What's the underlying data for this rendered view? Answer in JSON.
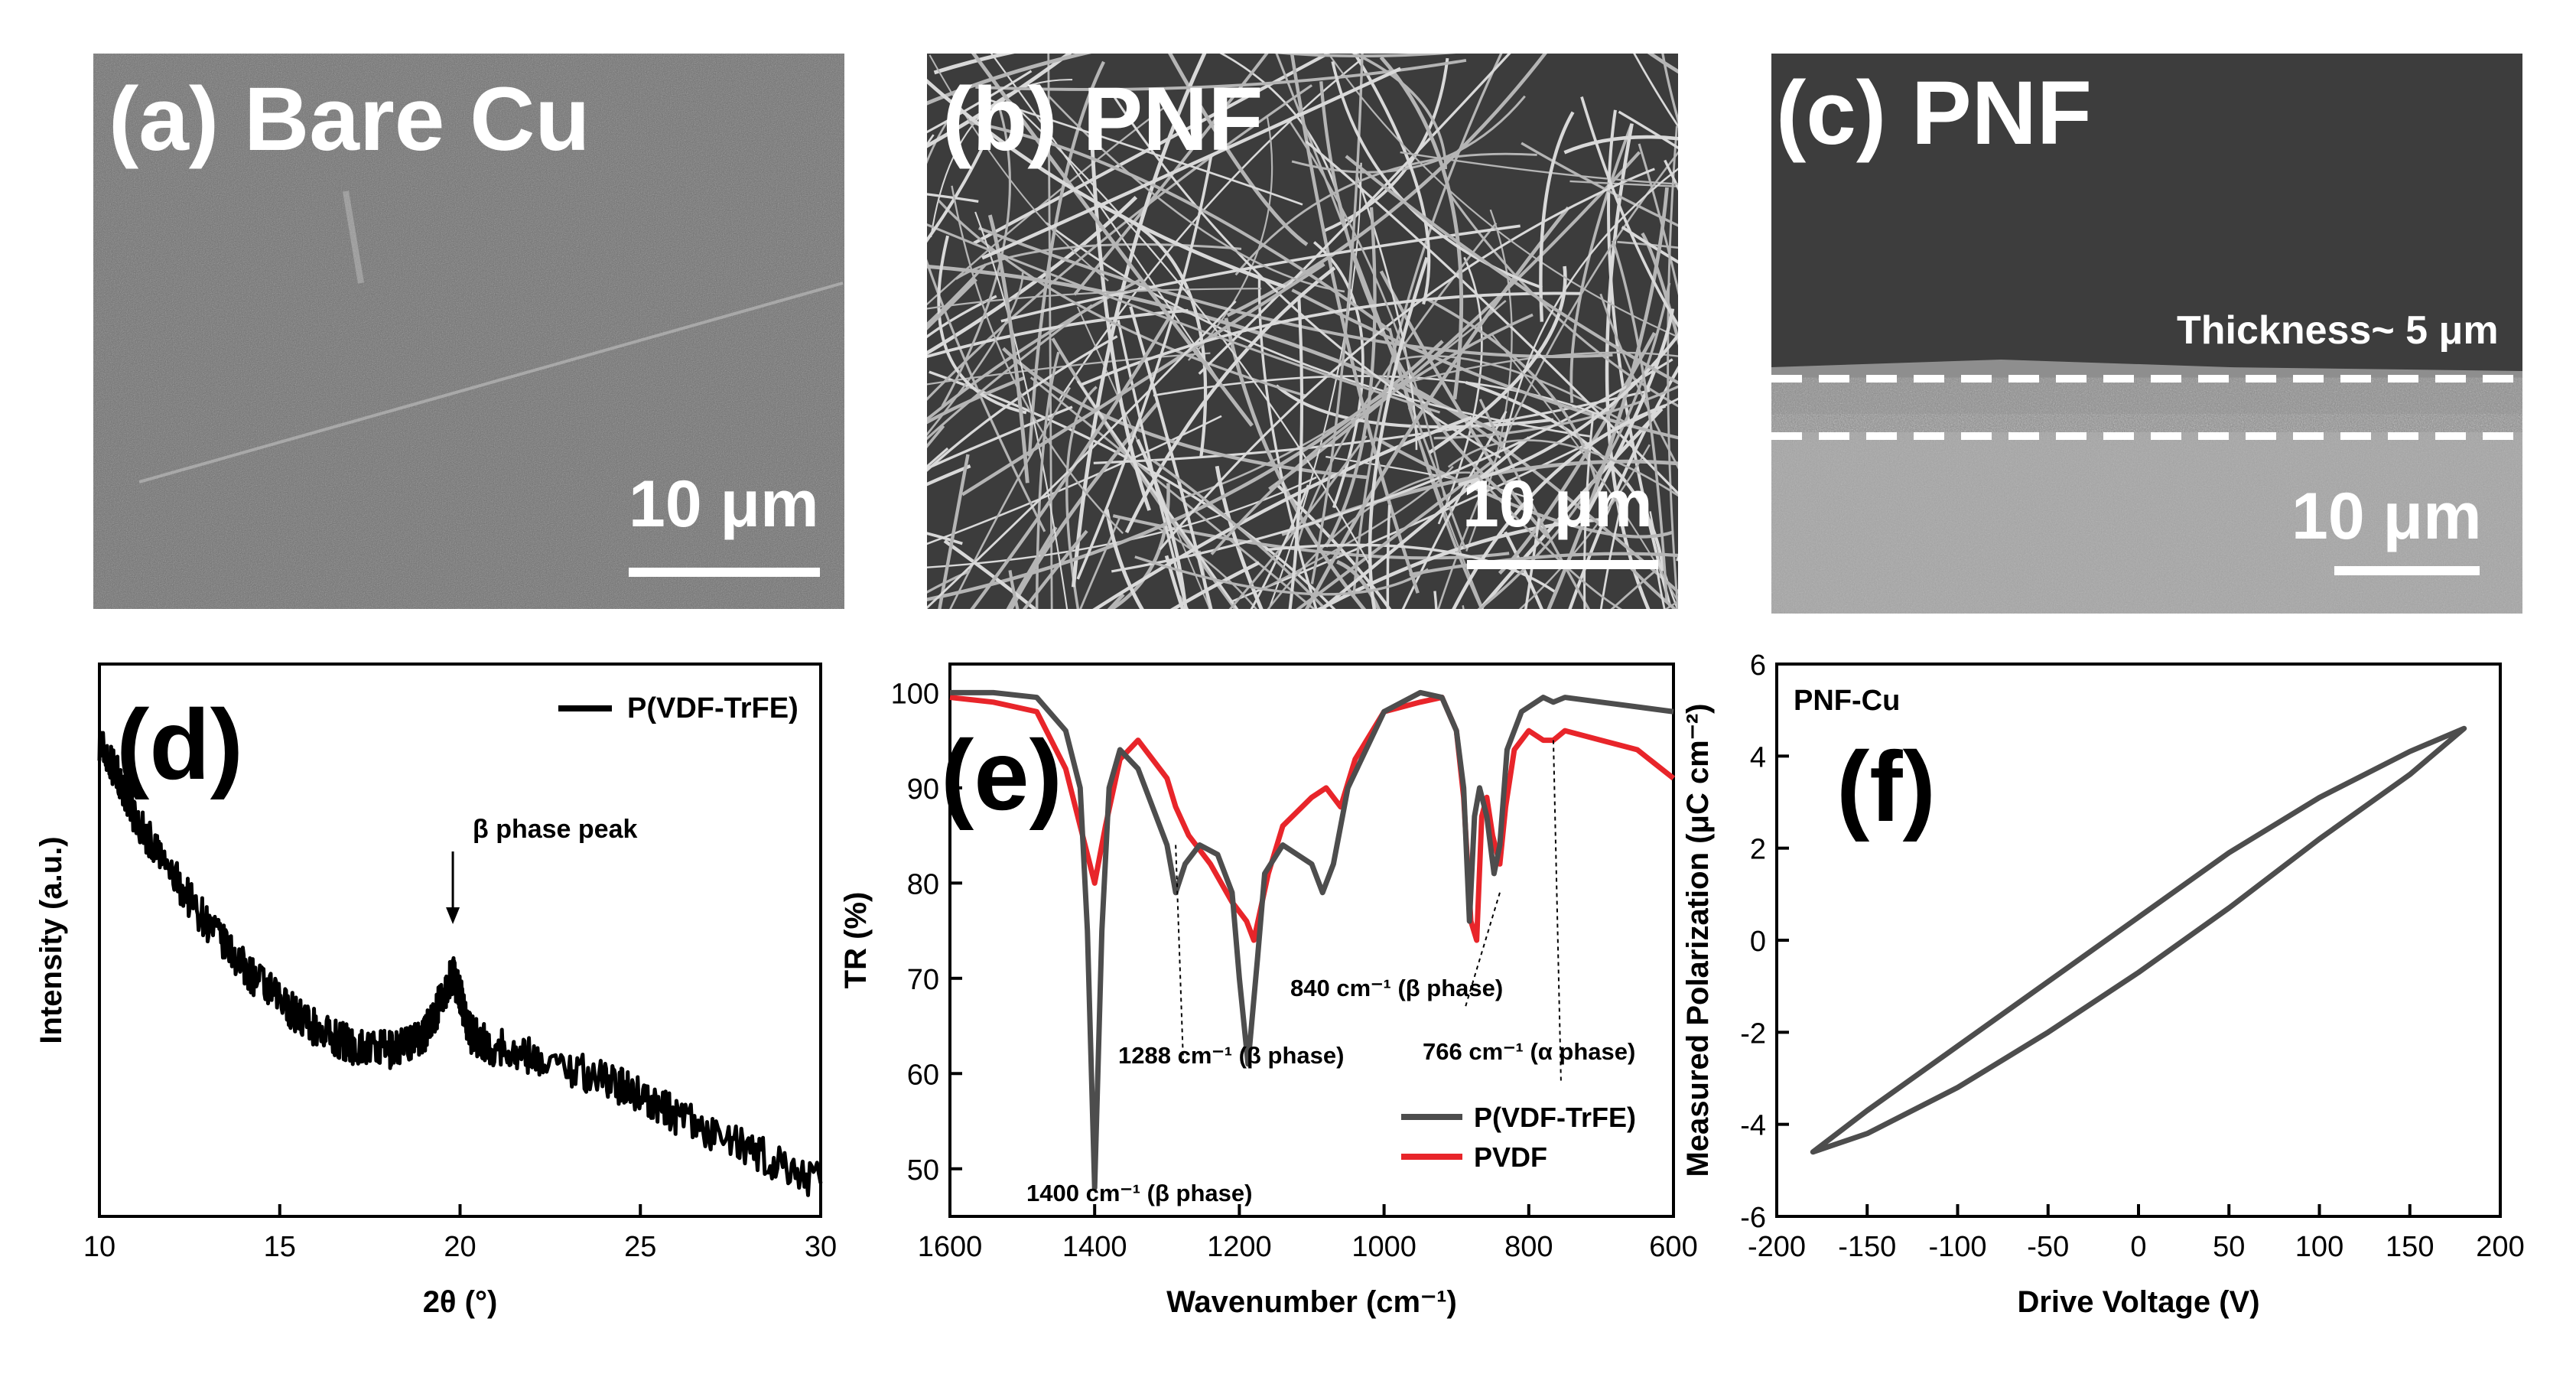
{
  "panels": {
    "a": {
      "label": "(a) Bare Cu",
      "scale": "10 μm"
    },
    "b": {
      "label": "(b) PNF",
      "scale": "10 μm"
    },
    "c": {
      "label": "(c) PNF",
      "scale": "10 μm",
      "thickness": "Thickness~ 5 μm"
    }
  },
  "colors": {
    "black": "#000000",
    "gray": "#4d4d4d",
    "red": "#e8252a"
  },
  "chart_data": [
    {
      "id": "d",
      "type": "line",
      "panel_label": "(d)",
      "xlabel": "2θ (°)",
      "ylabel": "Intensity (a.u.)",
      "xlim": [
        10,
        30
      ],
      "ylim": [
        0,
        1
      ],
      "xticks": [
        10,
        15,
        20,
        25,
        30
      ],
      "legend": [
        "P(VDF-TrFE)"
      ],
      "annotation": "β phase peak",
      "series": [
        {
          "name": "P(VDF-TrFE)",
          "color": "#000000",
          "x": [
            10,
            10.5,
            11,
            12,
            13,
            14,
            15,
            16,
            17,
            18,
            18.5,
            19,
            19.4,
            19.8,
            20,
            20.3,
            20.8,
            22,
            24,
            25,
            26,
            28,
            30
          ],
          "y": [
            0.86,
            0.8,
            0.72,
            0.62,
            0.53,
            0.45,
            0.39,
            0.34,
            0.31,
            0.3,
            0.31,
            0.33,
            0.38,
            0.44,
            0.4,
            0.33,
            0.31,
            0.29,
            0.25,
            0.22,
            0.18,
            0.12,
            0.06
          ]
        }
      ]
    },
    {
      "id": "e",
      "type": "line",
      "panel_label": "(e)",
      "xlabel": "Wavenumber (cm⁻¹)",
      "ylabel": "TR (%)",
      "xlim": [
        1600,
        600
      ],
      "ylim": [
        45,
        103
      ],
      "xticks": [
        1600,
        1400,
        1200,
        1000,
        800,
        600
      ],
      "yticks": [
        50,
        60,
        70,
        80,
        90,
        100
      ],
      "legend": [
        "P(VDF-TrFE)",
        "PVDF"
      ],
      "annotations": [
        "1400 cm⁻¹ (β phase)",
        "1288 cm⁻¹ (β phase)",
        "840 cm⁻¹ (β phase)",
        "766 cm⁻¹ (α phase)"
      ],
      "series": [
        {
          "name": "P(VDF-TrFE)",
          "color": "#4d4d4d",
          "x": [
            1600,
            1540,
            1480,
            1440,
            1420,
            1410,
            1400,
            1390,
            1380,
            1365,
            1340,
            1300,
            1288,
            1275,
            1255,
            1230,
            1210,
            1200,
            1188,
            1175,
            1165,
            1140,
            1100,
            1085,
            1070,
            1050,
            1000,
            950,
            920,
            900,
            890,
            882,
            875,
            868,
            858,
            848,
            840,
            830,
            810,
            780,
            766,
            750,
            700,
            650,
            600
          ],
          "y": [
            100,
            100,
            99.5,
            96,
            90,
            75,
            48,
            75,
            90,
            94,
            92,
            84,
            79,
            82,
            84,
            83,
            79,
            70,
            61,
            72,
            81,
            84,
            82,
            79,
            82,
            90,
            98,
            100,
            99.5,
            96,
            90,
            76,
            87,
            90,
            87,
            81,
            84,
            94,
            98,
            99.5,
            99,
            99.5,
            99,
            98.5,
            98
          ]
        },
        {
          "name": "PVDF",
          "color": "#e8252a",
          "x": [
            1600,
            1540,
            1480,
            1440,
            1420,
            1400,
            1385,
            1365,
            1340,
            1300,
            1288,
            1270,
            1240,
            1210,
            1190,
            1180,
            1160,
            1140,
            1100,
            1080,
            1060,
            1040,
            1000,
            950,
            920,
            900,
            890,
            880,
            872,
            865,
            858,
            850,
            840,
            832,
            820,
            800,
            780,
            766,
            750,
            700,
            650,
            600
          ],
          "y": [
            99.5,
            99,
            98,
            92,
            86,
            80,
            86,
            93,
            95,
            91,
            88,
            85,
            82,
            78,
            76,
            74,
            81,
            86,
            89,
            90,
            88,
            93,
            98,
            99,
            99.5,
            96,
            89,
            76,
            74,
            87,
            89,
            85,
            82,
            88,
            94,
            96,
            95,
            95,
            96,
            95,
            94,
            91
          ]
        }
      ]
    },
    {
      "id": "f",
      "type": "line",
      "panel_label": "(f)",
      "xlabel": "Drive Voltage (V)",
      "ylabel": "Measured Polarization (μC cm⁻²)",
      "xlim": [
        -200,
        200
      ],
      "ylim": [
        -6,
        6
      ],
      "xticks": [
        -200,
        -150,
        -100,
        -50,
        0,
        50,
        100,
        150,
        200
      ],
      "yticks": [
        -6,
        -4,
        -2,
        0,
        2,
        4,
        6
      ],
      "legend": [
        "PNF-Cu"
      ],
      "series": [
        {
          "name": "PNF-Cu upper branch",
          "color": "#4d4d4d",
          "x": [
            -180,
            -150,
            -100,
            -50,
            0,
            50,
            100,
            150,
            180
          ],
          "y": [
            -4.6,
            -3.7,
            -2.3,
            -0.9,
            0.5,
            1.9,
            3.1,
            4.1,
            4.6
          ]
        },
        {
          "name": "PNF-Cu lower branch",
          "color": "#4d4d4d",
          "x": [
            180,
            150,
            100,
            50,
            0,
            -50,
            -100,
            -150,
            -180
          ],
          "y": [
            4.6,
            3.6,
            2.2,
            0.7,
            -0.7,
            -2.0,
            -3.2,
            -4.2,
            -4.6
          ]
        }
      ]
    }
  ]
}
